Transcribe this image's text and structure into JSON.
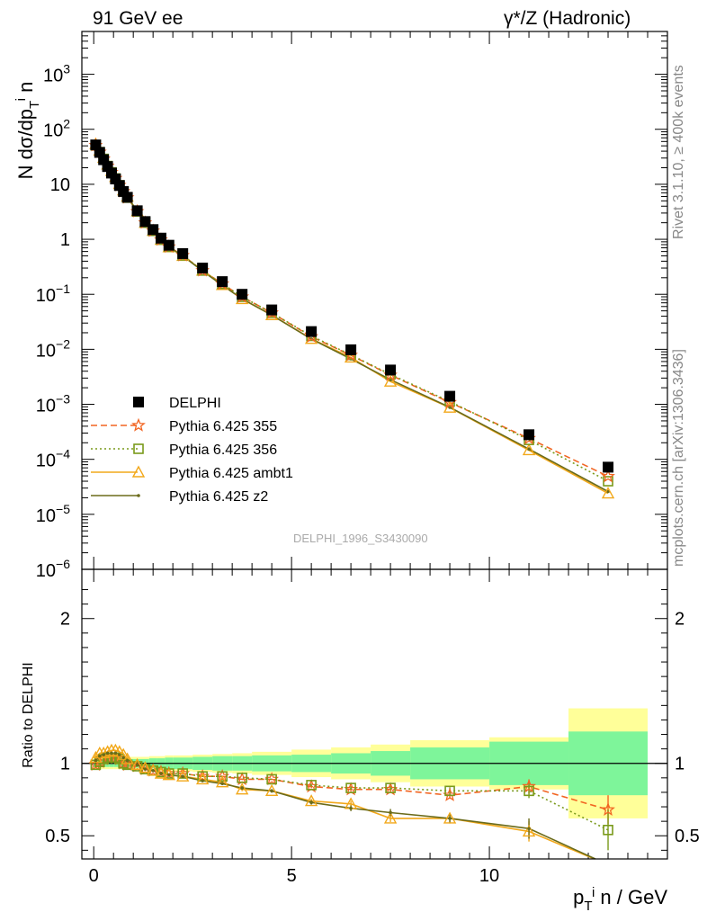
{
  "header": {
    "left_title": "91 GeV ee",
    "right_title": "γ*/Z (Hadronic)"
  },
  "side_labels": {
    "rivet": "Rivet 3.1.10, ≥ 400k events",
    "mcplots": "mcplots.cern.ch [arXiv:1306.3436]"
  },
  "watermark": "DELPHI_1996_S3430090",
  "colors": {
    "data": "#000000",
    "p355": "#f26522",
    "p356": "#7a9a1a",
    "ambt1": "#f2a81a",
    "z2": "#6b6b1a",
    "band_inner": "#7ef59a",
    "band_outer": "#ffff99"
  },
  "chart_data": [
    {
      "type": "scatter",
      "xlabel": "p_T^i n / GeV",
      "ylabel": "N dσ/dp_T^i n",
      "yscale": "log",
      "xlim": [
        -0.3,
        14.5
      ],
      "ylim": [
        1e-06,
        6000
      ],
      "y_ticks": [
        "10^-6",
        "10^-5",
        "10^-4",
        "10^-3",
        "10^-2",
        "10^-1",
        "1",
        "10",
        "10^2",
        "10^3"
      ],
      "legend_position": "lower-left",
      "x": [
        0.05,
        0.15,
        0.25,
        0.35,
        0.45,
        0.55,
        0.65,
        0.75,
        0.85,
        1.1,
        1.3,
        1.5,
        1.7,
        1.9,
        2.25,
        2.75,
        3.25,
        3.75,
        4.5,
        5.5,
        6.5,
        7.5,
        9.0,
        11.0,
        13.0
      ],
      "series": [
        {
          "name": "DELPHI",
          "values": [
            52,
            38,
            28,
            21,
            16,
            12.5,
            9.5,
            7.4,
            5.8,
            3.3,
            2.1,
            1.5,
            1.05,
            0.78,
            0.55,
            0.3,
            0.17,
            0.1,
            0.052,
            0.021,
            0.0098,
            0.0042,
            0.0014,
            0.00028,
            7.2e-05
          ]
        },
        {
          "name": "Pythia 6.425 355",
          "values": [
            51,
            38.5,
            29,
            21.5,
            16.5,
            12.8,
            9.6,
            7.4,
            5.7,
            3.2,
            2.0,
            1.42,
            0.98,
            0.73,
            0.51,
            0.27,
            0.155,
            0.09,
            0.046,
            0.017,
            0.0078,
            0.0034,
            0.00108,
            0.00024,
            4.9e-05
          ]
        },
        {
          "name": "Pythia 6.425 356",
          "values": [
            51,
            38.5,
            29,
            21.5,
            16.5,
            12.8,
            9.6,
            7.4,
            5.7,
            3.2,
            2.0,
            1.42,
            0.98,
            0.73,
            0.51,
            0.27,
            0.155,
            0.09,
            0.046,
            0.0175,
            0.0079,
            0.0035,
            0.00112,
            0.000225,
            4e-05
          ]
        },
        {
          "name": "Pythia 6.425 ambt1",
          "values": [
            54,
            41,
            30.5,
            23,
            17.6,
            13.6,
            10.2,
            7.8,
            6.0,
            3.25,
            2.0,
            1.43,
            0.98,
            0.72,
            0.5,
            0.27,
            0.148,
            0.082,
            0.042,
            0.0155,
            0.0071,
            0.0026,
            0.00087,
            0.000147,
            2.4e-05
          ]
        },
        {
          "name": "Pythia 6.425 z2",
          "values": [
            53,
            40,
            30,
            22.5,
            17.2,
            13.3,
            10,
            7.7,
            5.9,
            3.25,
            2.0,
            1.43,
            0.98,
            0.72,
            0.5,
            0.265,
            0.146,
            0.083,
            0.042,
            0.0154,
            0.0067,
            0.0028,
            0.00088,
            0.000154,
            2.6e-05
          ]
        }
      ]
    },
    {
      "type": "scatter",
      "xlabel": "p_T^i n / GeV",
      "ylabel": "Ratio to DELPHI",
      "xlim": [
        -0.3,
        14.5
      ],
      "ylim": [
        0.34,
        2.34
      ],
      "x_ticks": [
        0,
        5,
        10
      ],
      "y_ticks": [
        0.5,
        1,
        2
      ],
      "band_edges": [
        0,
        0.1,
        0.2,
        0.3,
        0.4,
        0.5,
        0.6,
        0.7,
        0.8,
        0.9,
        1.2,
        1.4,
        1.6,
        1.8,
        2,
        2.5,
        3,
        3.5,
        4,
        5,
        6,
        7,
        8,
        10,
        12,
        14
      ],
      "band_inner": [
        0.025,
        0.025,
        0.025,
        0.025,
        0.025,
        0.025,
        0.025,
        0.025,
        0.025,
        0.03,
        0.03,
        0.035,
        0.035,
        0.04,
        0.04,
        0.045,
        0.05,
        0.05,
        0.055,
        0.06,
        0.07,
        0.085,
        0.11,
        0.15,
        0.22
      ],
      "band_outer": [
        0.04,
        0.04,
        0.04,
        0.04,
        0.04,
        0.04,
        0.04,
        0.04,
        0.04,
        0.045,
        0.045,
        0.05,
        0.05,
        0.055,
        0.055,
        0.06,
        0.065,
        0.07,
        0.08,
        0.095,
        0.11,
        0.13,
        0.16,
        0.18,
        0.38
      ],
      "reference_line": 1,
      "series": [
        {
          "name": "Pythia 6.425 355",
          "values": [
            0.99,
            1.01,
            1.03,
            1.04,
            1.04,
            1.04,
            1.03,
            1.0,
            0.99,
            0.98,
            0.96,
            0.95,
            0.94,
            0.93,
            0.93,
            0.91,
            0.91,
            0.89,
            0.89,
            0.84,
            0.82,
            0.82,
            0.78,
            0.84,
            0.68
          ],
          "errors": [
            0.005,
            0.005,
            0.005,
            0.005,
            0.005,
            0.005,
            0.005,
            0.005,
            0.005,
            0.005,
            0.005,
            0.005,
            0.005,
            0.005,
            0.005,
            0.006,
            0.006,
            0.007,
            0.008,
            0.01,
            0.012,
            0.016,
            0.025,
            0.05,
            0.1
          ]
        },
        {
          "name": "Pythia 6.425 356",
          "values": [
            0.99,
            1.01,
            1.03,
            1.04,
            1.04,
            1.04,
            1.03,
            1.0,
            0.99,
            0.98,
            0.96,
            0.95,
            0.94,
            0.93,
            0.93,
            0.91,
            0.91,
            0.9,
            0.89,
            0.85,
            0.83,
            0.83,
            0.81,
            0.81,
            0.54
          ],
          "errors": [
            0.005,
            0.005,
            0.005,
            0.005,
            0.005,
            0.005,
            0.005,
            0.005,
            0.005,
            0.005,
            0.005,
            0.005,
            0.005,
            0.005,
            0.005,
            0.006,
            0.006,
            0.007,
            0.008,
            0.01,
            0.012,
            0.016,
            0.025,
            0.05,
            0.14
          ]
        },
        {
          "name": "Pythia 6.425 ambt1",
          "values": [
            1.04,
            1.07,
            1.07,
            1.08,
            1.09,
            1.09,
            1.08,
            1.06,
            1.03,
            0.99,
            0.97,
            0.95,
            0.93,
            0.92,
            0.91,
            0.89,
            0.87,
            0.82,
            0.81,
            0.74,
            0.72,
            0.62,
            0.62,
            0.53,
            0.3
          ],
          "errors": [
            0.008,
            0.008,
            0.008,
            0.008,
            0.008,
            0.008,
            0.008,
            0.008,
            0.008,
            0.008,
            0.008,
            0.008,
            0.008,
            0.008,
            0.008,
            0.01,
            0.01,
            0.012,
            0.012,
            0.015,
            0.02,
            0.025,
            0.035,
            0.07,
            0.1
          ]
        },
        {
          "name": "Pythia 6.425 z2",
          "values": [
            1.02,
            1.05,
            1.06,
            1.07,
            1.07,
            1.07,
            1.06,
            1.04,
            1.02,
            0.99,
            0.96,
            0.95,
            0.93,
            0.92,
            0.91,
            0.88,
            0.86,
            0.83,
            0.81,
            0.73,
            0.69,
            0.66,
            0.62,
            0.55,
            0.3
          ],
          "errors": [
            0.008,
            0.008,
            0.008,
            0.008,
            0.008,
            0.008,
            0.008,
            0.008,
            0.008,
            0.008,
            0.008,
            0.008,
            0.008,
            0.008,
            0.008,
            0.01,
            0.01,
            0.012,
            0.012,
            0.015,
            0.02,
            0.025,
            0.035,
            0.07,
            0.1
          ]
        }
      ]
    }
  ]
}
